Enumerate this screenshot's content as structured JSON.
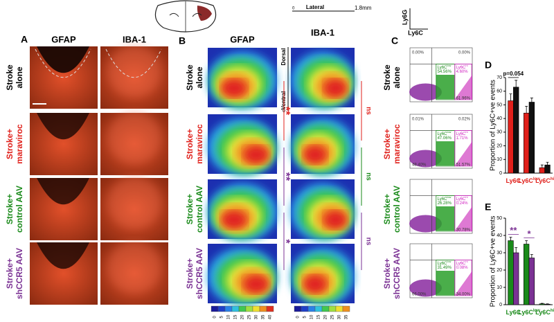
{
  "figure": {
    "rows": [
      {
        "lines": [
          "Stroke",
          "alone"
        ],
        "color": "#000000"
      },
      {
        "lines": [
          "Stroke+",
          "maraviroc"
        ],
        "color": "#e0201b"
      },
      {
        "lines": [
          "Stroke+",
          "control AAV"
        ],
        "color": "#1a8a1a"
      },
      {
        "lines": [
          "Stroke+",
          "shCCR5 AAV"
        ],
        "color": "#7b3294"
      }
    ],
    "A": {
      "label": "A",
      "columns": [
        "GFAP",
        "IBA-1"
      ]
    },
    "B": {
      "label": "B",
      "columns": [
        "GFAP",
        "IBA-1"
      ],
      "lateral": "Lateral",
      "lateral_start": "0",
      "lateral_end": "1.8mm",
      "dorsal": "Dorsal",
      "ventral": "Ventral",
      "ventral_zero": "0",
      "colorbar_gfap": [
        0,
        5,
        10,
        15,
        20,
        25,
        30,
        35,
        40
      ],
      "colorbar_iba": [
        0,
        5,
        10,
        15,
        20,
        25,
        30,
        35
      ],
      "gfap_sig": [
        {
          "text": "**",
          "color": "#e0201b"
        },
        {
          "text": "**",
          "color": "#7b3294"
        },
        {
          "text": "*",
          "color": "#7b3294"
        }
      ],
      "iba_sig": [
        "ns",
        "ns",
        "ns"
      ]
    },
    "C": {
      "label": "C",
      "y_axis": "Ly6G",
      "x_axis": "Ly6C",
      "gates": {
        "low": {
          "base": "Ly6C",
          "sup": "low"
        },
        "hi": {
          "base": "Ly6C",
          "sup": "hi"
        }
      },
      "plots": [
        {
          "tl": "0.00%",
          "tr": "0.00%",
          "low": "54.56%",
          "hi": "4.60%",
          "br": "61.96%"
        },
        {
          "tl": "0.01%",
          "tr": "0.02%",
          "low": "47.06%",
          "hi": "1.71%",
          "bl": "48.40%",
          "br": "51.57%"
        },
        {
          "low": "26.28%",
          "hi": "0.24%",
          "br": "30.78%"
        },
        {
          "low": "31.49%",
          "hi": "0.08%",
          "bl": "66.00%",
          "br": "34.00%"
        }
      ]
    }
  },
  "chart_data": [
    {
      "type": "bar",
      "label": "D",
      "ylabel": "Proportion of Ly6C+ve events",
      "categories": [
        "Ly6C",
        "Ly6C",
        "Ly6C"
      ],
      "category_sup": [
        null,
        "low",
        "hi"
      ],
      "series": [
        {
          "color": "#e0201b",
          "values": [
            53,
            44,
            4
          ],
          "errors": [
            5,
            5,
            2
          ]
        },
        {
          "color": "#111111",
          "values": [
            63,
            52,
            6
          ],
          "errors": [
            5,
            3,
            2
          ]
        }
      ],
      "ylim": [
        0,
        70
      ],
      "yticks": [
        0,
        10,
        20,
        30,
        40,
        50,
        60,
        70
      ],
      "annotations": [
        {
          "text": "p=0.054",
          "color": "#000000"
        }
      ]
    },
    {
      "type": "bar",
      "label": "E",
      "ylabel": "Proportion of Ly6C+ve events",
      "categories": [
        "Ly6C",
        "Ly6C",
        "Ly6C"
      ],
      "category_sup": [
        null,
        "low",
        "hi"
      ],
      "series": [
        {
          "color": "#1a8a1a",
          "values": [
            37,
            35,
            0.5
          ],
          "errors": [
            2,
            2,
            0.3
          ]
        },
        {
          "color": "#7b3294",
          "values": [
            30,
            27,
            0.3
          ],
          "errors": [
            3,
            2,
            0.2
          ]
        }
      ],
      "ylim": [
        0,
        50
      ],
      "yticks": [
        0,
        10,
        20,
        30,
        40,
        50
      ],
      "annotations": [
        {
          "text": "**",
          "color": "#7b3294"
        },
        {
          "text": "*",
          "color": "#7b3294"
        }
      ]
    }
  ]
}
